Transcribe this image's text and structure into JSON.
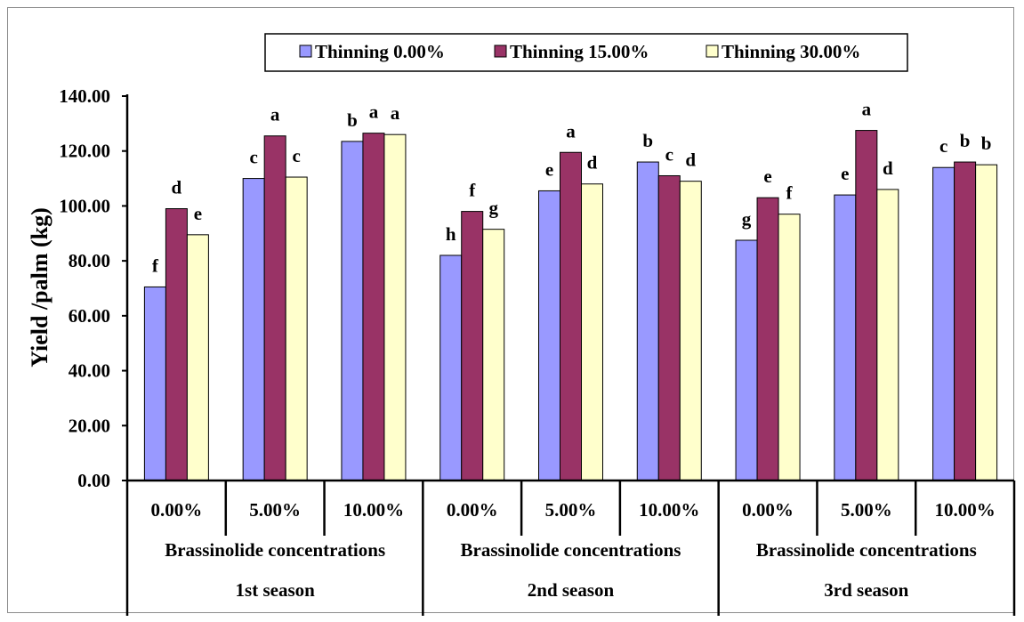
{
  "chart_data": {
    "type": "bar",
    "ylabel": "Yield /palm (kg)",
    "ylim": [
      0,
      140
    ],
    "y_ticks": [
      "0.00",
      "20.00",
      "40.00",
      "60.00",
      "80.00",
      "100.00",
      "120.00",
      "140.00"
    ],
    "legend_position": "top",
    "categories": [
      "0.00%",
      "5.00%",
      "10.00%",
      "0.00%",
      "5.00%",
      "10.00%",
      "0.00%",
      "5.00%",
      "10.00%"
    ],
    "group_labels": [
      "Brassinolide concentrations",
      "Brassinolide concentrations",
      "Brassinolide concentrations"
    ],
    "season_labels": [
      "1st season",
      "2nd season",
      "3rd season"
    ],
    "series": [
      {
        "name": "Thinning 0.00%",
        "color": "#9999ff",
        "values": [
          70.5,
          110.0,
          123.5,
          82.0,
          105.5,
          116.0,
          87.5,
          104.0,
          114.0
        ],
        "letters": [
          "f",
          "c",
          "b",
          "h",
          "e",
          "b",
          "g",
          "e",
          "c"
        ]
      },
      {
        "name": "Thinning 15.00%",
        "color": "#993366",
        "values": [
          99.0,
          125.5,
          126.5,
          98.0,
          119.5,
          111.0,
          103.0,
          127.5,
          116.0
        ],
        "letters": [
          "d",
          "a",
          "a",
          "f",
          "a",
          "c",
          "e",
          "a",
          "b"
        ]
      },
      {
        "name": "Thinning 30.00%",
        "color": "#ffffcc",
        "values": [
          89.5,
          110.5,
          126.0,
          91.5,
          108.0,
          109.0,
          97.0,
          106.0,
          115.0
        ],
        "letters": [
          "e",
          "c",
          "a",
          "g",
          "d",
          "d",
          "f",
          "d",
          "b"
        ]
      }
    ]
  }
}
